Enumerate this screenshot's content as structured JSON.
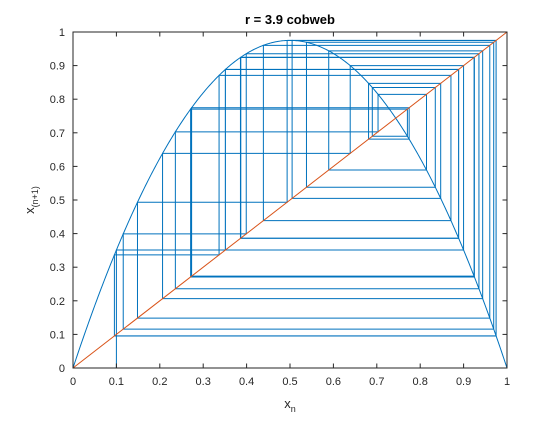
{
  "chart_data": {
    "type": "line",
    "title": "r = 3.9 cobweb",
    "xlabel": {
      "base": "x",
      "sub": "n"
    },
    "ylabel": {
      "base": "x",
      "sub": "(n+1)"
    },
    "xlim": [
      0,
      1
    ],
    "ylim": [
      0,
      1
    ],
    "xticks": [
      "0",
      "0.1",
      "0.2",
      "0.3",
      "0.4",
      "0.5",
      "0.6",
      "0.7",
      "0.8",
      "0.9",
      "1"
    ],
    "yticks": [
      "0",
      "0.1",
      "0.2",
      "0.3",
      "0.4",
      "0.5",
      "0.6",
      "0.7",
      "0.8",
      "0.9",
      "1"
    ],
    "grid": false,
    "box": true,
    "r": 3.9,
    "x0": 0.1,
    "iterations": 40,
    "series": [
      {
        "kind": "logistic-map-curve",
        "color": "#0072BD"
      },
      {
        "kind": "cobweb-path",
        "color": "#0072BD"
      },
      {
        "kind": "identity-line",
        "color": "#D95319"
      }
    ]
  }
}
